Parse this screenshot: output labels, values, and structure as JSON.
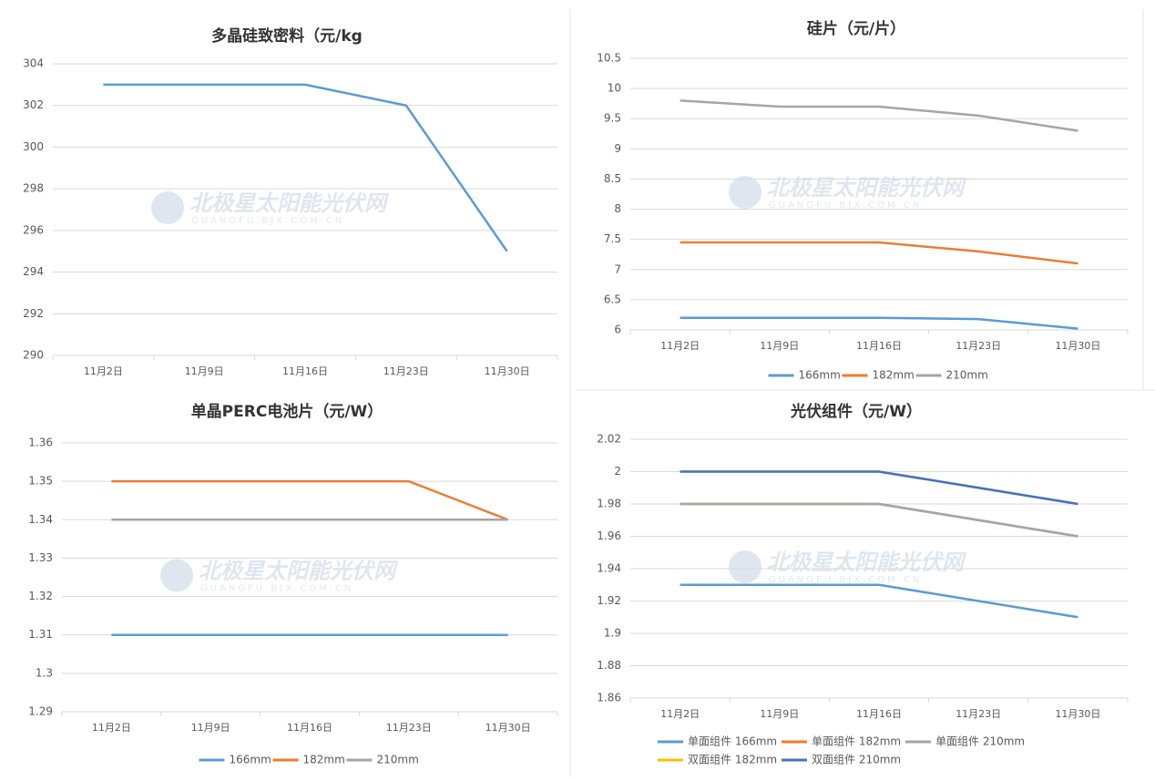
{
  "chart_data": [
    {
      "type": "line",
      "title": "多晶硅致密料（元/kg",
      "watermark": "北极星太阳能光伏网",
      "watermark_sub": "GUANGFU.BJX.COM.CN",
      "categories": [
        "11月2日",
        "11月9日",
        "11月16日",
        "11月23日",
        "11月30日"
      ],
      "series": [
        {
          "name": null,
          "color": "#5b9bd5",
          "values": [
            303,
            303,
            303,
            302,
            295
          ]
        }
      ],
      "ylim": [
        290,
        304
      ],
      "yticks": [
        290,
        292,
        294,
        296,
        298,
        300,
        302,
        304
      ],
      "grid": true,
      "legend": "none"
    },
    {
      "type": "line",
      "title": "硅片（元/片）",
      "watermark": "北极星太阳能光伏网",
      "watermark_sub": "GUANGFU.BJX.COM.CN",
      "categories": [
        "11月2日",
        "11月9日",
        "11月16日",
        "11月23日",
        "11月30日"
      ],
      "series": [
        {
          "name": "166mm",
          "color": "#5b9bd5",
          "values": [
            6.2,
            6.2,
            6.2,
            6.18,
            6.02
          ]
        },
        {
          "name": "182mm",
          "color": "#ed7d31",
          "values": [
            7.45,
            7.45,
            7.45,
            7.3,
            7.1
          ]
        },
        {
          "name": "210mm",
          "color": "#a5a5a5",
          "values": [
            9.8,
            9.7,
            9.7,
            9.55,
            9.3
          ]
        }
      ],
      "ylim": [
        6,
        10.5
      ],
      "yticks": [
        6,
        6.5,
        7,
        7.5,
        8,
        8.5,
        9,
        9.5,
        10,
        10.5
      ],
      "grid": true,
      "legend": "bottom"
    },
    {
      "type": "line",
      "title": "单晶PERC电池片（元/W）",
      "watermark": "北极星太阳能光伏网",
      "watermark_sub": "GUANGFU.BJX.COM.CN",
      "categories": [
        "11月2日",
        "11月9日",
        "11月16日",
        "11月23日",
        "11月30日"
      ],
      "series": [
        {
          "name": "166mm",
          "color": "#5b9bd5",
          "values": [
            1.31,
            1.31,
            1.31,
            1.31,
            1.31
          ]
        },
        {
          "name": "182mm",
          "color": "#ed7d31",
          "values": [
            1.35,
            1.35,
            1.35,
            1.35,
            1.34
          ]
        },
        {
          "name": "210mm",
          "color": "#a5a5a5",
          "values": [
            1.34,
            1.34,
            1.34,
            1.34,
            1.34
          ]
        }
      ],
      "ylim": [
        1.29,
        1.36
      ],
      "yticks": [
        1.29,
        1.3,
        1.31,
        1.32,
        1.33,
        1.34,
        1.35,
        1.36
      ],
      "grid": true,
      "legend": "bottom"
    },
    {
      "type": "line",
      "title": "光伏组件（元/W）",
      "watermark": "北极星太阳能光伏网",
      "watermark_sub": "GUANGFU.BJX.COM.CN",
      "categories": [
        "11月2日",
        "11月9日",
        "11月16日",
        "11月23日",
        "11月30日"
      ],
      "series": [
        {
          "name": "单面组件 166mm",
          "color": "#5b9bd5",
          "values": [
            1.93,
            1.93,
            1.93,
            1.92,
            1.91
          ]
        },
        {
          "name": "单面组件 182mm",
          "color": "#ed7d31",
          "values": [
            1.98,
            1.98,
            1.98,
            1.97,
            1.96
          ]
        },
        {
          "name": "单面组件 210mm",
          "color": "#a5a5a5",
          "values": [
            1.98,
            1.98,
            1.98,
            1.97,
            1.96
          ]
        },
        {
          "name": "双面组件 182mm",
          "color": "#ffc000",
          "values": [
            2,
            2,
            2,
            1.99,
            1.98
          ]
        },
        {
          "name": "双面组件 210mm",
          "color": "#4472c4",
          "values": [
            2,
            2,
            2,
            1.99,
            1.98
          ]
        }
      ],
      "ylim": [
        1.86,
        2.02
      ],
      "yticks": [
        1.86,
        1.88,
        1.9,
        1.92,
        1.94,
        1.96,
        1.98,
        2,
        2.02
      ],
      "grid": true,
      "legend": "bottom"
    }
  ]
}
